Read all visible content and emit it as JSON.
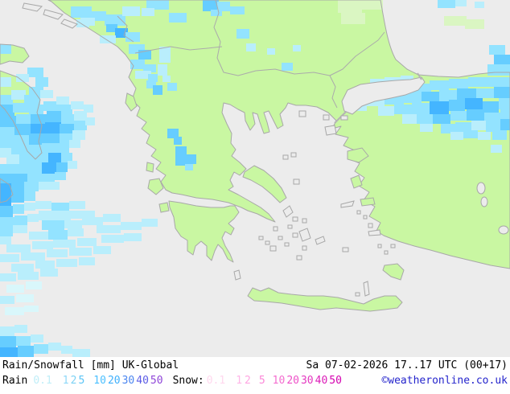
{
  "map": {
    "colors": {
      "sea": "#ececec",
      "land": "#c9f7a2",
      "coastline": "#a8a8a8"
    },
    "precip_palette": [
      "#daf6c2",
      "#d9f7fb",
      "#b9eefc",
      "#93e3ff",
      "#66cdff",
      "#44b5ff",
      "#2f9df2"
    ],
    "precip_cells": [
      [
        88,
        8,
        26,
        14,
        3
      ],
      [
        95,
        24,
        16,
        10,
        2
      ],
      [
        112,
        14,
        20,
        12,
        3
      ],
      [
        100,
        22,
        18,
        10,
        2
      ],
      [
        130,
        18,
        26,
        14,
        3
      ],
      [
        152,
        8,
        22,
        12,
        2
      ],
      [
        182,
        0,
        28,
        12,
        3
      ],
      [
        176,
        10,
        16,
        10,
        2
      ],
      [
        210,
        16,
        22,
        12,
        3
      ],
      [
        132,
        30,
        14,
        10,
        4
      ],
      [
        143,
        35,
        16,
        12,
        5
      ],
      [
        156,
        40,
        18,
        12,
        3
      ],
      [
        124,
        44,
        20,
        10,
        2
      ],
      [
        160,
        55,
        20,
        12,
        3
      ],
      [
        172,
        62,
        16,
        12,
        4
      ],
      [
        162,
        74,
        18,
        12,
        3
      ],
      [
        178,
        80,
        16,
        10,
        3
      ],
      [
        168,
        88,
        20,
        10,
        2
      ],
      [
        184,
        92,
        12,
        10,
        3
      ],
      [
        198,
        58,
        14,
        20,
        2
      ],
      [
        196,
        80,
        12,
        14,
        2
      ],
      [
        202,
        94,
        10,
        8,
        2
      ],
      [
        252,
        0,
        20,
        14,
        4
      ],
      [
        270,
        2,
        16,
        12,
        3
      ],
      [
        286,
        8,
        18,
        10,
        3
      ],
      [
        262,
        12,
        14,
        8,
        3
      ],
      [
        294,
        36,
        16,
        12,
        3
      ],
      [
        306,
        54,
        12,
        10,
        2
      ],
      [
        350,
        78,
        14,
        10,
        3
      ],
      [
        332,
        60,
        10,
        8,
        2
      ],
      [
        364,
        56,
        10,
        8,
        2
      ],
      [
        182,
        100,
        12,
        10,
        3
      ],
      [
        190,
        106,
        12,
        12,
        4
      ],
      [
        208,
        103,
        12,
        10,
        3
      ],
      [
        208,
        160,
        14,
        12,
        4
      ],
      [
        216,
        170,
        10,
        10,
        4
      ],
      [
        218,
        182,
        14,
        12,
        4
      ],
      [
        230,
        192,
        14,
        12,
        4
      ],
      [
        218,
        194,
        12,
        12,
        4
      ],
      [
        230,
        204,
        10,
        8,
        3
      ],
      [
        544,
        0,
        22,
        10,
        3
      ],
      [
        566,
        0,
        14,
        8,
        2
      ],
      [
        590,
        2,
        12,
        8,
        2
      ],
      [
        608,
        56,
        20,
        12,
        3
      ],
      [
        614,
        68,
        20,
        12,
        4
      ],
      [
        606,
        80,
        28,
        14,
        3
      ],
      [
        460,
        98,
        18,
        10,
        2
      ],
      [
        478,
        96,
        20,
        10,
        2
      ],
      [
        498,
        94,
        16,
        10,
        2
      ],
      [
        432,
        112,
        24,
        12,
        2
      ],
      [
        436,
        128,
        20,
        10,
        2
      ],
      [
        470,
        108,
        24,
        12,
        2
      ],
      [
        494,
        106,
        22,
        12,
        3
      ],
      [
        516,
        104,
        20,
        12,
        3
      ],
      [
        534,
        100,
        24,
        12,
        3
      ],
      [
        558,
        98,
        24,
        12,
        3
      ],
      [
        582,
        96,
        24,
        12,
        3
      ],
      [
        606,
        96,
        28,
        12,
        3
      ],
      [
        456,
        120,
        22,
        12,
        2
      ],
      [
        478,
        118,
        24,
        12,
        3
      ],
      [
        502,
        116,
        22,
        12,
        3
      ],
      [
        524,
        114,
        22,
        12,
        4
      ],
      [
        546,
        112,
        22,
        14,
        3
      ],
      [
        568,
        110,
        24,
        14,
        4
      ],
      [
        592,
        110,
        22,
        12,
        3
      ],
      [
        614,
        108,
        20,
        14,
        4
      ],
      [
        470,
        132,
        20,
        12,
        2
      ],
      [
        490,
        130,
        22,
        12,
        3
      ],
      [
        512,
        128,
        22,
        14,
        3
      ],
      [
        534,
        126,
        24,
        16,
        5
      ],
      [
        558,
        124,
        20,
        14,
        4
      ],
      [
        578,
        122,
        22,
        14,
        5
      ],
      [
        600,
        126,
        20,
        14,
        4
      ],
      [
        620,
        122,
        14,
        14,
        3
      ],
      [
        500,
        142,
        18,
        12,
        2
      ],
      [
        518,
        142,
        20,
        12,
        3
      ],
      [
        538,
        142,
        22,
        12,
        4
      ],
      [
        560,
        138,
        20,
        12,
        3
      ],
      [
        580,
        136,
        22,
        14,
        4
      ],
      [
        602,
        140,
        20,
        12,
        3
      ],
      [
        622,
        136,
        12,
        12,
        3
      ],
      [
        522,
        154,
        16,
        10,
        2
      ],
      [
        548,
        154,
        18,
        12,
        3
      ],
      [
        566,
        152,
        20,
        12,
        3
      ],
      [
        586,
        150,
        18,
        12,
        2
      ],
      [
        604,
        152,
        20,
        12,
        3
      ],
      [
        622,
        148,
        12,
        14,
        4
      ],
      [
        560,
        164,
        16,
        10,
        2
      ],
      [
        576,
        162,
        18,
        10,
        3
      ],
      [
        594,
        164,
        16,
        10,
        2
      ],
      [
        612,
        162,
        18,
        12,
        3
      ],
      [
        610,
        180,
        14,
        10,
        2
      ],
      [
        0,
        55,
        14,
        12,
        3
      ],
      [
        34,
        84,
        20,
        12,
        3
      ],
      [
        20,
        92,
        16,
        10,
        2
      ],
      [
        0,
        96,
        14,
        12,
        2
      ],
      [
        44,
        96,
        16,
        12,
        3
      ],
      [
        36,
        108,
        18,
        12,
        3
      ],
      [
        0,
        118,
        16,
        12,
        3
      ],
      [
        14,
        112,
        18,
        12,
        2
      ],
      [
        30,
        118,
        20,
        12,
        3
      ],
      [
        50,
        112,
        16,
        10,
        2
      ],
      [
        0,
        130,
        18,
        14,
        4
      ],
      [
        16,
        128,
        20,
        12,
        3
      ],
      [
        36,
        130,
        18,
        12,
        3
      ],
      [
        54,
        126,
        18,
        12,
        3
      ],
      [
        70,
        120,
        16,
        10,
        2
      ],
      [
        72,
        130,
        18,
        12,
        3
      ],
      [
        88,
        126,
        16,
        10,
        2
      ],
      [
        0,
        144,
        20,
        14,
        4
      ],
      [
        20,
        142,
        18,
        12,
        3
      ],
      [
        38,
        142,
        20,
        12,
        4
      ],
      [
        58,
        138,
        18,
        14,
        4
      ],
      [
        76,
        142,
        18,
        12,
        3
      ],
      [
        92,
        138,
        16,
        12,
        2
      ],
      [
        104,
        130,
        12,
        10,
        2
      ],
      [
        0,
        158,
        18,
        14,
        3
      ],
      [
        18,
        154,
        20,
        14,
        4
      ],
      [
        38,
        154,
        18,
        12,
        5
      ],
      [
        56,
        152,
        20,
        14,
        5
      ],
      [
        74,
        154,
        18,
        12,
        4
      ],
      [
        92,
        150,
        16,
        12,
        3
      ],
      [
        106,
        146,
        12,
        10,
        2
      ],
      [
        0,
        172,
        16,
        12,
        3
      ],
      [
        16,
        168,
        20,
        12,
        3
      ],
      [
        36,
        166,
        20,
        14,
        4
      ],
      [
        56,
        166,
        18,
        12,
        4
      ],
      [
        74,
        166,
        16,
        12,
        3
      ],
      [
        90,
        162,
        16,
        12,
        2
      ],
      [
        0,
        184,
        14,
        12,
        2
      ],
      [
        14,
        180,
        18,
        12,
        3
      ],
      [
        32,
        180,
        20,
        12,
        3
      ],
      [
        52,
        178,
        18,
        12,
        3
      ],
      [
        70,
        178,
        16,
        12,
        3
      ],
      [
        86,
        174,
        14,
        10,
        2
      ],
      [
        8,
        192,
        16,
        12,
        2
      ],
      [
        24,
        192,
        18,
        12,
        3
      ],
      [
        42,
        190,
        18,
        12,
        3
      ],
      [
        60,
        190,
        16,
        14,
        5
      ],
      [
        76,
        190,
        14,
        12,
        3
      ],
      [
        0,
        204,
        16,
        12,
        3
      ],
      [
        16,
        204,
        18,
        12,
        3
      ],
      [
        34,
        202,
        18,
        12,
        3
      ],
      [
        52,
        202,
        18,
        14,
        5
      ],
      [
        70,
        202,
        14,
        12,
        4
      ],
      [
        84,
        200,
        12,
        10,
        2
      ],
      [
        0,
        216,
        16,
        12,
        4
      ],
      [
        16,
        216,
        18,
        12,
        4
      ],
      [
        34,
        214,
        18,
        12,
        3
      ],
      [
        52,
        216,
        16,
        12,
        3
      ],
      [
        68,
        214,
        14,
        10,
        3
      ],
      [
        0,
        228,
        14,
        14,
        5
      ],
      [
        14,
        228,
        16,
        12,
        4
      ],
      [
        30,
        226,
        18,
        12,
        3
      ],
      [
        48,
        226,
        14,
        10,
        2
      ],
      [
        62,
        226,
        12,
        10,
        2
      ],
      [
        0,
        242,
        14,
        14,
        5
      ],
      [
        14,
        240,
        16,
        12,
        4
      ],
      [
        30,
        238,
        14,
        12,
        3
      ],
      [
        44,
        250,
        20,
        10,
        2
      ],
      [
        0,
        256,
        16,
        14,
        4
      ],
      [
        16,
        254,
        14,
        12,
        3
      ],
      [
        30,
        252,
        14,
        10,
        2
      ],
      [
        64,
        252,
        22,
        12,
        3
      ],
      [
        86,
        250,
        20,
        10,
        2
      ],
      [
        0,
        270,
        18,
        12,
        3
      ],
      [
        18,
        268,
        16,
        12,
        3
      ],
      [
        34,
        266,
        14,
        10,
        2
      ],
      [
        48,
        262,
        40,
        12,
        2
      ],
      [
        88,
        262,
        30,
        10,
        2
      ],
      [
        0,
        282,
        16,
        12,
        3
      ],
      [
        16,
        280,
        18,
        10,
        2
      ],
      [
        52,
        274,
        28,
        12,
        3
      ],
      [
        80,
        274,
        22,
        10,
        2
      ],
      [
        102,
        270,
        26,
        10,
        2
      ],
      [
        128,
        266,
        22,
        10,
        2
      ],
      [
        0,
        294,
        14,
        10,
        2
      ],
      [
        36,
        288,
        24,
        10,
        2
      ],
      [
        60,
        286,
        24,
        12,
        3
      ],
      [
        84,
        284,
        20,
        10,
        2
      ],
      [
        120,
        280,
        30,
        10,
        2
      ],
      [
        150,
        276,
        26,
        10,
        2
      ],
      [
        176,
        272,
        20,
        10,
        2
      ],
      [
        8,
        304,
        30,
        10,
        2
      ],
      [
        40,
        300,
        26,
        10,
        2
      ],
      [
        66,
        298,
        28,
        10,
        2
      ],
      [
        96,
        296,
        24,
        10,
        2
      ],
      [
        126,
        292,
        28,
        10,
        2
      ],
      [
        154,
        290,
        22,
        10,
        2
      ],
      [
        0,
        316,
        24,
        10,
        2
      ],
      [
        26,
        314,
        30,
        10,
        2
      ],
      [
        58,
        310,
        26,
        10,
        2
      ],
      [
        86,
        308,
        28,
        10,
        2
      ],
      [
        116,
        306,
        22,
        10,
        2
      ],
      [
        14,
        328,
        28,
        10,
        2
      ],
      [
        44,
        324,
        24,
        10,
        2
      ],
      [
        70,
        322,
        26,
        10,
        2
      ],
      [
        98,
        320,
        20,
        10,
        2
      ],
      [
        0,
        340,
        20,
        10,
        2
      ],
      [
        22,
        338,
        26,
        10,
        2
      ],
      [
        50,
        334,
        22,
        10,
        2
      ],
      [
        8,
        354,
        22,
        10,
        1
      ],
      [
        32,
        350,
        20,
        10,
        1
      ],
      [
        0,
        368,
        18,
        10,
        2
      ],
      [
        20,
        366,
        22,
        10,
        1
      ],
      [
        6,
        382,
        24,
        10,
        1
      ],
      [
        30,
        380,
        18,
        8,
        1
      ],
      [
        0,
        406,
        18,
        12,
        2
      ],
      [
        18,
        404,
        16,
        10,
        2
      ],
      [
        0,
        418,
        20,
        14,
        4
      ],
      [
        20,
        418,
        18,
        12,
        3
      ],
      [
        38,
        416,
        16,
        10,
        2
      ],
      [
        0,
        432,
        22,
        12,
        5
      ],
      [
        22,
        430,
        20,
        14,
        4
      ],
      [
        42,
        428,
        18,
        12,
        3
      ],
      [
        60,
        426,
        16,
        10,
        2
      ],
      [
        76,
        430,
        14,
        10,
        2
      ],
      [
        90,
        434,
        22,
        10,
        2
      ],
      [
        420,
        0,
        30,
        16,
        0
      ],
      [
        450,
        0,
        26,
        12,
        0
      ],
      [
        424,
        16,
        30,
        14,
        0
      ],
      [
        552,
        20,
        28,
        12,
        0
      ],
      [
        578,
        24,
        24,
        12,
        0
      ]
    ]
  },
  "legend": {
    "product_label": "Rain/Snowfall [mm] UK-Global",
    "datetime_label": "Sa 07-02-2026 17..17 UTC (00+17)",
    "rain_label": "Rain",
    "snow_label": "Snow:",
    "copyright": "©weatheronline.co.uk",
    "copyright_color": "#2424cc",
    "rain_values": [
      {
        "text": "0.1",
        "color": "#c0eef8"
      },
      {
        "text": "1",
        "color": "#8fd8f8"
      },
      {
        "text": "2",
        "color": "#7dd2f4"
      },
      {
        "text": "5",
        "color": "#5ac4f6"
      },
      {
        "text": "10",
        "color": "#4cc0ff"
      },
      {
        "text": "20",
        "color": "#3fb0fc"
      },
      {
        "text": "30",
        "color": "#4b86f0"
      },
      {
        "text": "40",
        "color": "#5c5ce6"
      },
      {
        "text": "50",
        "color": "#8f46d8"
      }
    ],
    "snow_values": [
      {
        "text": "0.1",
        "color": "#ffd8ee"
      },
      {
        "text": "1",
        "color": "#ffb6e8"
      },
      {
        "text": "2",
        "color": "#ffa6e2"
      },
      {
        "text": "5",
        "color": "#fb88d8"
      },
      {
        "text": "10",
        "color": "#f46ed0"
      },
      {
        "text": "20",
        "color": "#ee50c8"
      },
      {
        "text": "30",
        "color": "#e438c0"
      },
      {
        "text": "40",
        "color": "#dc1cb8"
      },
      {
        "text": "50",
        "color": "#d400b0"
      }
    ]
  }
}
